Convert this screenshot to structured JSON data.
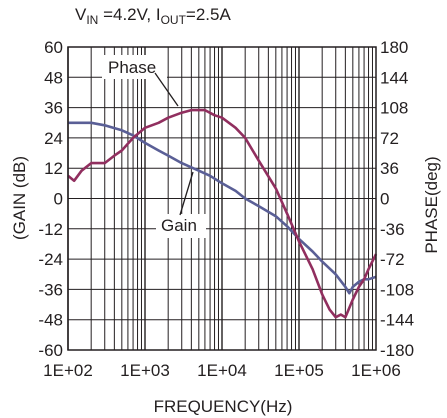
{
  "chart_data": {
    "type": "line",
    "header": {
      "v_main": "V",
      "v_sub": "IN",
      "v_rest": " =4.2V, I",
      "i_sub": "OUT",
      "i_rest": "=2.5A"
    },
    "xlabel": "FREQUENCY(Hz)",
    "ylabel_left": "(GAIN (dB)",
    "ylabel_right": "PHASE(deg)",
    "x_scale": "log",
    "xlim": [
      100,
      1000000
    ],
    "ylim_left": [
      -60,
      60
    ],
    "ylim_right": [
      -180,
      180
    ],
    "grid": true,
    "x_ticks": [
      {
        "value": 100,
        "label": "1E+02"
      },
      {
        "value": 1000,
        "label": "1E+03"
      },
      {
        "value": 10000,
        "label": "1E+04"
      },
      {
        "value": 100000,
        "label": "1E+05"
      },
      {
        "value": 1000000,
        "label": "1E+06"
      }
    ],
    "y_ticks_left": [
      "60",
      "48",
      "36",
      "24",
      "12",
      "0",
      "-12",
      "-24",
      "-36",
      "-48",
      "-60"
    ],
    "y_ticks_right": [
      "180",
      "144",
      "108",
      "72",
      "36",
      "0",
      "-36",
      "-72",
      "-108",
      "-144",
      "-180"
    ],
    "series": [
      {
        "name": "Gain",
        "axis": "left",
        "color": "#5a5f96",
        "x": [
          100,
          150,
          200,
          300,
          500,
          700,
          1000,
          1500,
          2000,
          3000,
          5000,
          7000,
          10000,
          15000,
          20000,
          30000,
          50000,
          70000,
          100000,
          150000,
          200000,
          300000,
          400000,
          450000,
          500000,
          600000,
          700000,
          800000,
          1000000
        ],
        "y": [
          30,
          30,
          30,
          29,
          27,
          25,
          22,
          19,
          17,
          14,
          11,
          9,
          6,
          3,
          0,
          -3,
          -7,
          -11,
          -16,
          -21,
          -25,
          -30,
          -35,
          -37.5,
          -35,
          -33,
          -32,
          -32,
          -31
        ]
      },
      {
        "name": "Phase",
        "axis": "right",
        "color": "#912f5f",
        "x": [
          100,
          120,
          150,
          200,
          300,
          400,
          500,
          700,
          1000,
          1500,
          2000,
          3000,
          4000,
          5000,
          6000,
          8000,
          10000,
          15000,
          20000,
          30000,
          50000,
          70000,
          100000,
          150000,
          200000,
          250000,
          300000,
          350000,
          400000,
          500000,
          600000,
          700000,
          800000,
          1000000
        ],
        "y": [
          27,
          21,
          33,
          42,
          42,
          51,
          57,
          72,
          84,
          90,
          96,
          102,
          105,
          105,
          105,
          99,
          96,
          84,
          72,
          45,
          12,
          -18,
          -51,
          -84,
          -114,
          -132,
          -141,
          -138,
          -141,
          -120,
          -105,
          -96,
          -84,
          -66
        ]
      }
    ],
    "annotations": [
      {
        "text": "Phase",
        "series": "Phase"
      },
      {
        "text": "Gain",
        "series": "Gain"
      }
    ]
  }
}
